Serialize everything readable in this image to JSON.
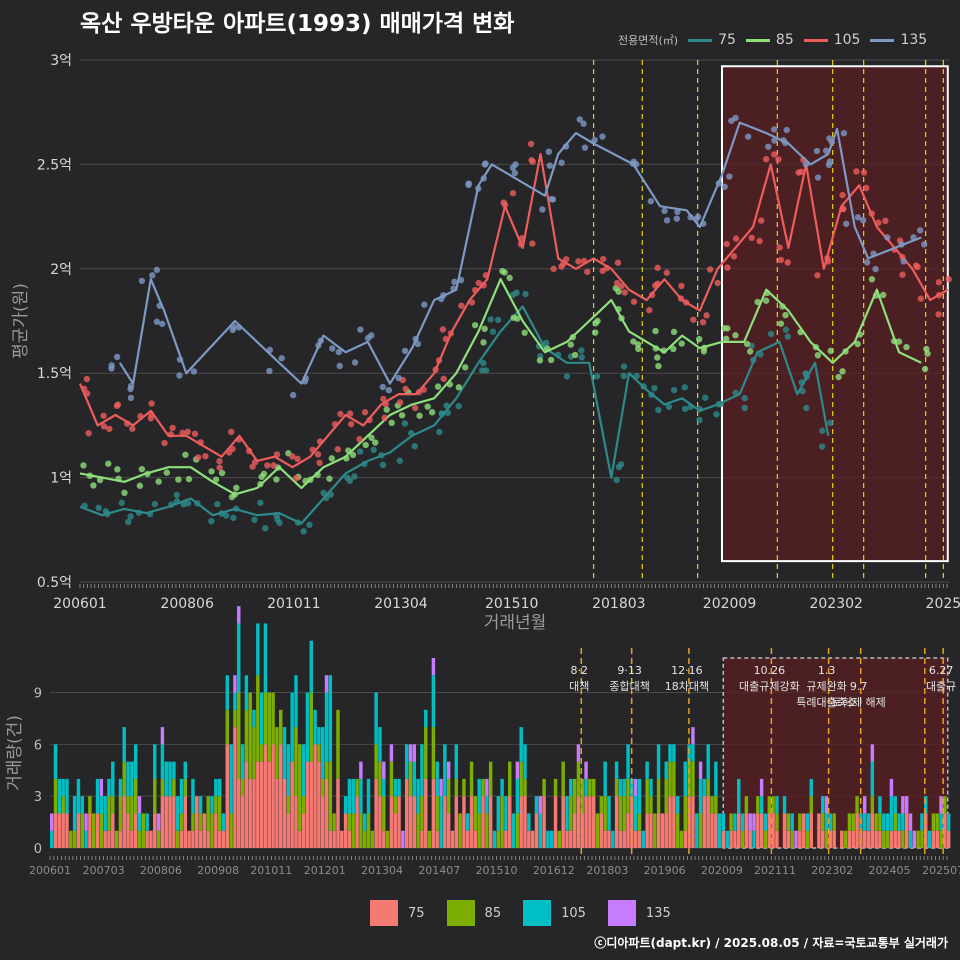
{
  "title": "옥산 우방타운 아파트(1993) 매매가격 변화",
  "footer": "ⓒ디아파트(dapt.kr) / 2025.08.05 / 자료=국토교통부 실거래가",
  "legend_title": "전용면적(㎡)",
  "colors": {
    "75": "#2e8a8a",
    "85": "#8ee07a",
    "105": "#ee5c5c",
    "135": "#7d99c4",
    "vol75": "#f67a74",
    "vol85": "#7cae00",
    "vol105": "#00bfc4",
    "vol135": "#c77cff"
  },
  "chart_data": [
    {
      "type": "line",
      "xlabel": "거래년월",
      "ylabel": "평균가(원)",
      "xlim": [
        2006.0,
        2025.65
      ],
      "ylim": [
        0.5,
        3.0
      ],
      "x_ticks": [
        {
          "t": 2006.0,
          "label": "200601"
        },
        {
          "t": 2008.42,
          "label": "200806"
        },
        {
          "t": 2010.83,
          "label": "201011"
        },
        {
          "t": 2013.25,
          "label": "201304"
        },
        {
          "t": 2015.75,
          "label": "201510"
        },
        {
          "t": 2018.17,
          "label": "201803"
        },
        {
          "t": 2020.67,
          "label": "202009"
        },
        {
          "t": 2023.08,
          "label": "202302"
        },
        {
          "t": 2025.5,
          "label": "2025"
        }
      ],
      "y_ticks": [
        {
          "v": 0.5,
          "label": "0.5억"
        },
        {
          "v": 1.0,
          "label": "1억"
        },
        {
          "v": 1.5,
          "label": "1.5억"
        },
        {
          "v": 2.0,
          "label": "2억"
        },
        {
          "v": 2.5,
          "label": "2.5억"
        },
        {
          "v": 3.0,
          "label": "3억"
        }
      ],
      "highlight_range": [
        2020.5,
        2025.6
      ],
      "highlight_ylim": [
        0.6,
        2.97
      ],
      "policy_lines": [
        2017.6,
        2018.7,
        2019.95,
        2021.75,
        2023.0,
        2023.7,
        2025.1,
        2025.5
      ],
      "series": [
        {
          "name": "75",
          "points": [
            [
              2006.0,
              0.86
            ],
            [
              2006.5,
              0.82
            ],
            [
              2007.0,
              0.85
            ],
            [
              2007.5,
              0.83
            ],
            [
              2008.0,
              0.86
            ],
            [
              2008.5,
              0.9
            ],
            [
              2009.0,
              0.82
            ],
            [
              2009.5,
              0.85
            ],
            [
              2010.0,
              0.82
            ],
            [
              2010.5,
              0.83
            ],
            [
              2011.0,
              0.78
            ],
            [
              2011.5,
              0.9
            ],
            [
              2012.0,
              1.02
            ],
            [
              2012.5,
              1.08
            ],
            [
              2013.0,
              1.12
            ],
            [
              2013.5,
              1.2
            ],
            [
              2014.0,
              1.25
            ],
            [
              2014.5,
              1.38
            ],
            [
              2015.0,
              1.55
            ],
            [
              2015.5,
              1.7
            ],
            [
              2016.0,
              1.82
            ],
            [
              2016.5,
              1.62
            ],
            [
              2017.0,
              1.55
            ],
            [
              2017.5,
              1.55
            ],
            [
              2018.0,
              1.0
            ],
            [
              2018.4,
              1.5
            ],
            [
              2018.8,
              1.42
            ],
            [
              2019.2,
              1.35
            ],
            [
              2019.6,
              1.38
            ],
            [
              2020.0,
              1.32
            ],
            [
              2020.4,
              1.35
            ],
            [
              2020.9,
              1.4
            ],
            [
              2021.3,
              1.6
            ],
            [
              2021.8,
              1.65
            ],
            [
              2022.2,
              1.4
            ],
            [
              2022.6,
              1.55
            ],
            [
              2022.9,
              1.2
            ]
          ]
        },
        {
          "name": "85",
          "points": [
            [
              2006.0,
              1.02
            ],
            [
              2006.5,
              1.0
            ],
            [
              2007.0,
              0.98
            ],
            [
              2007.5,
              1.02
            ],
            [
              2008.0,
              1.05
            ],
            [
              2008.5,
              1.05
            ],
            [
              2009.0,
              0.98
            ],
            [
              2009.5,
              0.92
            ],
            [
              2010.0,
              0.95
            ],
            [
              2010.5,
              1.05
            ],
            [
              2011.0,
              0.95
            ],
            [
              2011.5,
              1.05
            ],
            [
              2012.0,
              1.1
            ],
            [
              2012.5,
              1.2
            ],
            [
              2013.0,
              1.3
            ],
            [
              2013.5,
              1.35
            ],
            [
              2014.0,
              1.38
            ],
            [
              2014.5,
              1.5
            ],
            [
              2015.0,
              1.7
            ],
            [
              2015.5,
              1.95
            ],
            [
              2016.0,
              1.75
            ],
            [
              2016.5,
              1.6
            ],
            [
              2017.0,
              1.65
            ],
            [
              2017.5,
              1.75
            ],
            [
              2018.0,
              1.85
            ],
            [
              2018.4,
              1.7
            ],
            [
              2018.8,
              1.65
            ],
            [
              2019.2,
              1.6
            ],
            [
              2019.6,
              1.68
            ],
            [
              2020.0,
              1.62
            ],
            [
              2020.5,
              1.65
            ],
            [
              2021.0,
              1.65
            ],
            [
              2021.5,
              1.9
            ],
            [
              2022.0,
              1.8
            ],
            [
              2022.5,
              1.65
            ],
            [
              2023.0,
              1.55
            ],
            [
              2023.5,
              1.65
            ],
            [
              2024.0,
              1.9
            ],
            [
              2024.5,
              1.6
            ],
            [
              2025.0,
              1.55
            ]
          ]
        },
        {
          "name": "105",
          "points": [
            [
              2006.0,
              1.45
            ],
            [
              2006.4,
              1.25
            ],
            [
              2006.8,
              1.3
            ],
            [
              2007.2,
              1.25
            ],
            [
              2007.6,
              1.32
            ],
            [
              2008.0,
              1.2
            ],
            [
              2008.4,
              1.2
            ],
            [
              2008.8,
              1.15
            ],
            [
              2009.2,
              1.1
            ],
            [
              2009.6,
              1.2
            ],
            [
              2010.0,
              1.08
            ],
            [
              2010.4,
              1.1
            ],
            [
              2010.8,
              1.05
            ],
            [
              2011.2,
              1.1
            ],
            [
              2011.6,
              1.2
            ],
            [
              2012.0,
              1.3
            ],
            [
              2012.4,
              1.25
            ],
            [
              2012.8,
              1.35
            ],
            [
              2013.2,
              1.4
            ],
            [
              2013.6,
              1.4
            ],
            [
              2014.0,
              1.5
            ],
            [
              2014.4,
              1.7
            ],
            [
              2014.8,
              1.85
            ],
            [
              2015.2,
              1.95
            ],
            [
              2015.6,
              2.3
            ],
            [
              2016.0,
              2.1
            ],
            [
              2016.4,
              2.55
            ],
            [
              2016.8,
              2.05
            ],
            [
              2017.2,
              2.0
            ],
            [
              2017.6,
              2.05
            ],
            [
              2018.0,
              2.0
            ],
            [
              2018.4,
              1.9
            ],
            [
              2018.8,
              1.85
            ],
            [
              2019.2,
              1.95
            ],
            [
              2019.6,
              1.85
            ],
            [
              2020.0,
              1.8
            ],
            [
              2020.4,
              2.0
            ],
            [
              2020.8,
              2.1
            ],
            [
              2021.2,
              2.2
            ],
            [
              2021.6,
              2.5
            ],
            [
              2022.0,
              2.1
            ],
            [
              2022.4,
              2.5
            ],
            [
              2022.8,
              2.0
            ],
            [
              2023.2,
              2.3
            ],
            [
              2023.6,
              2.4
            ],
            [
              2024.0,
              2.2
            ],
            [
              2024.4,
              2.1
            ],
            [
              2024.8,
              2.0
            ],
            [
              2025.2,
              1.85
            ],
            [
              2025.6,
              1.9
            ]
          ]
        },
        {
          "name": "135",
          "points": [
            [
              2006.9,
              1.55
            ],
            [
              2007.2,
              1.45
            ],
            [
              2007.6,
              1.95
            ],
            [
              2007.9,
              1.8
            ],
            [
              2008.4,
              1.5
            ],
            [
              2009.5,
              1.75
            ],
            [
              2010.5,
              1.55
            ],
            [
              2011.0,
              1.45
            ],
            [
              2011.5,
              1.68
            ],
            [
              2012.0,
              1.6
            ],
            [
              2012.5,
              1.65
            ],
            [
              2013.0,
              1.45
            ],
            [
              2013.5,
              1.62
            ],
            [
              2014.0,
              1.85
            ],
            [
              2014.5,
              1.9
            ],
            [
              2015.0,
              2.4
            ],
            [
              2015.3,
              2.5
            ],
            [
              2015.7,
              2.45
            ],
            [
              2016.5,
              2.35
            ],
            [
              2016.8,
              2.55
            ],
            [
              2017.2,
              2.65
            ],
            [
              2017.6,
              2.6
            ],
            [
              2018.5,
              2.5
            ],
            [
              2019.1,
              2.3
            ],
            [
              2019.7,
              2.28
            ],
            [
              2020.0,
              2.2
            ],
            [
              2020.5,
              2.45
            ],
            [
              2020.9,
              2.7
            ],
            [
              2021.5,
              2.65
            ],
            [
              2022.0,
              2.6
            ],
            [
              2022.5,
              2.5
            ],
            [
              2022.9,
              2.55
            ],
            [
              2023.1,
              2.67
            ],
            [
              2023.5,
              2.2
            ],
            [
              2023.8,
              2.05
            ],
            [
              2024.4,
              2.1
            ],
            [
              2025.0,
              2.15
            ]
          ]
        }
      ]
    },
    {
      "type": "bar",
      "stacked": true,
      "ylabel": "거래량(건)",
      "xlim": [
        2006.0,
        2025.65
      ],
      "ylim": [
        0,
        11
      ],
      "y_ticks": [
        {
          "v": 0,
          "label": "0"
        },
        {
          "v": 3,
          "label": "3"
        },
        {
          "v": 6,
          "label": "6"
        },
        {
          "v": 9,
          "label": "9"
        }
      ],
      "x_ticks": [
        {
          "t": 2006.0,
          "label": "200601"
        },
        {
          "t": 2007.17,
          "label": "200703"
        },
        {
          "t": 2008.42,
          "label": "200806"
        },
        {
          "t": 2009.67,
          "label": "200908"
        },
        {
          "t": 2010.83,
          "label": "201011"
        },
        {
          "t": 2012.0,
          "label": "201201"
        },
        {
          "t": 2013.25,
          "label": "201304"
        },
        {
          "t": 2014.5,
          "label": "201407"
        },
        {
          "t": 2015.75,
          "label": "201510"
        },
        {
          "t": 2017.0,
          "label": "201612"
        },
        {
          "t": 2018.17,
          "label": "201803"
        },
        {
          "t": 2019.42,
          "label": "201906"
        },
        {
          "t": 2020.67,
          "label": "202009"
        },
        {
          "t": 2021.83,
          "label": "202111"
        },
        {
          "t": 2023.08,
          "label": "202302"
        },
        {
          "t": 2024.33,
          "label": "202405"
        },
        {
          "t": 2025.5,
          "label": "202507"
        }
      ],
      "series_names": [
        "75",
        "85",
        "105",
        "135"
      ],
      "highlight_range": [
        2020.7,
        2025.6
      ],
      "policy_marks": [
        {
          "t": 2017.6,
          "date": "8·2",
          "label": "대책",
          "date2": "",
          "label2": ""
        },
        {
          "t": 2018.7,
          "date": "9·13",
          "label": "종합대책",
          "date2": "",
          "label2": ""
        },
        {
          "t": 2019.95,
          "date": "12·16",
          "label": "18차대책",
          "date2": "",
          "label2": ""
        },
        {
          "t": 2021.75,
          "date": "10.26",
          "label": "대출규제강화",
          "date2": "",
          "label2": ""
        },
        {
          "t": 2023.0,
          "date": "1.3",
          "label": "규제완화",
          "date2": "",
          "label2": "특례대출축소"
        },
        {
          "t": 2023.7,
          "date": "",
          "label": "9.7",
          "date2": "",
          "label2": "토허제 해제"
        },
        {
          "t": 2025.1,
          "date": "",
          "label": "",
          "date2": "",
          "label2": ""
        },
        {
          "t": 2025.5,
          "date": "6.27",
          "label": "대출규",
          "date2": "",
          "label2": ""
        }
      ]
    }
  ]
}
